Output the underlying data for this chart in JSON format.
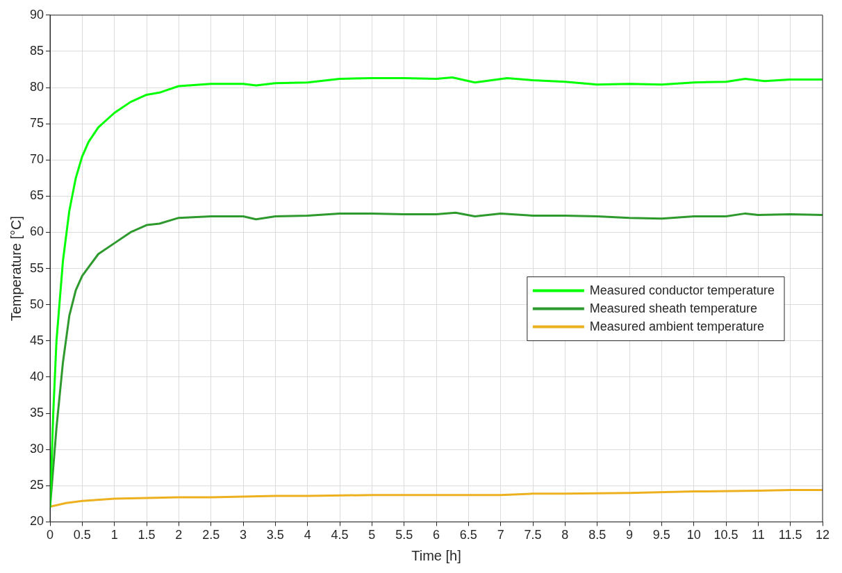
{
  "chart_data": {
    "type": "line",
    "xlabel": "Time [h]",
    "ylabel": "Temperature [°C]",
    "xlim": [
      0,
      12
    ],
    "ylim": [
      20,
      90
    ],
    "xticks": [
      0,
      0.5,
      1,
      1.5,
      2,
      2.5,
      3,
      3.5,
      4,
      4.5,
      5,
      5.5,
      6,
      6.5,
      7,
      7.5,
      8,
      8.5,
      9,
      9.5,
      10,
      10.5,
      11,
      11.5,
      12
    ],
    "yticks": [
      20,
      25,
      30,
      35,
      40,
      45,
      50,
      55,
      60,
      65,
      70,
      75,
      80,
      85,
      90
    ],
    "grid": true,
    "legend": "right",
    "marker": "none",
    "line_style": "solid",
    "series": [
      {
        "name": "Measured conductor temperature",
        "color": "#00ff00",
        "x": [
          0,
          0.05,
          0.1,
          0.2,
          0.3,
          0.4,
          0.5,
          0.6,
          0.75,
          1,
          1.25,
          1.5,
          1.7,
          2,
          2.5,
          3,
          3.2,
          3.5,
          4,
          4.5,
          5,
          5.5,
          6,
          6.25,
          6.6,
          7.1,
          7.5,
          8,
          8.5,
          9,
          9.5,
          10,
          10.5,
          10.8,
          11.1,
          11.5,
          12
        ],
        "values": [
          22,
          35,
          45,
          56,
          63,
          67.5,
          70.5,
          72.5,
          74.5,
          76.5,
          78,
          79,
          79.3,
          80.2,
          80.5,
          80.5,
          80.3,
          80.6,
          80.7,
          81.2,
          81.3,
          81.3,
          81.2,
          81.4,
          80.7,
          81.3,
          81,
          80.8,
          80.4,
          80.5,
          80.4,
          80.7,
          80.8,
          81.2,
          80.9,
          81.1,
          81.1
        ]
      },
      {
        "name": "Measured sheath temperature",
        "color": "#2e9a2e",
        "x": [
          0,
          0.1,
          0.2,
          0.3,
          0.4,
          0.5,
          0.75,
          1,
          1.25,
          1.5,
          1.7,
          2,
          2.5,
          3,
          3.2,
          3.5,
          4,
          4.5,
          5,
          5.5,
          6,
          6.3,
          6.6,
          7,
          7.5,
          8,
          8.5,
          9,
          9.5,
          10,
          10.5,
          10.8,
          11,
          11.5,
          12
        ],
        "values": [
          22,
          33,
          42,
          48.5,
          52,
          54,
          57,
          58.5,
          60,
          61,
          61.2,
          62,
          62.2,
          62.2,
          61.8,
          62.2,
          62.3,
          62.6,
          62.6,
          62.5,
          62.5,
          62.7,
          62.2,
          62.6,
          62.3,
          62.3,
          62.2,
          62,
          61.9,
          62.2,
          62.2,
          62.6,
          62.4,
          62.5,
          62.4
        ]
      },
      {
        "name": "Measured ambient temperature",
        "color": "#edb120",
        "x": [
          0,
          0.25,
          0.5,
          1,
          1.5,
          2,
          2.5,
          3,
          3.5,
          4,
          5,
          6,
          7,
          7.5,
          8,
          9,
          10,
          11,
          11.5,
          12
        ],
        "values": [
          22.1,
          22.6,
          22.9,
          23.2,
          23.3,
          23.4,
          23.4,
          23.5,
          23.6,
          23.6,
          23.7,
          23.7,
          23.7,
          23.9,
          23.9,
          24,
          24.2,
          24.3,
          24.4,
          24.4
        ]
      }
    ]
  }
}
